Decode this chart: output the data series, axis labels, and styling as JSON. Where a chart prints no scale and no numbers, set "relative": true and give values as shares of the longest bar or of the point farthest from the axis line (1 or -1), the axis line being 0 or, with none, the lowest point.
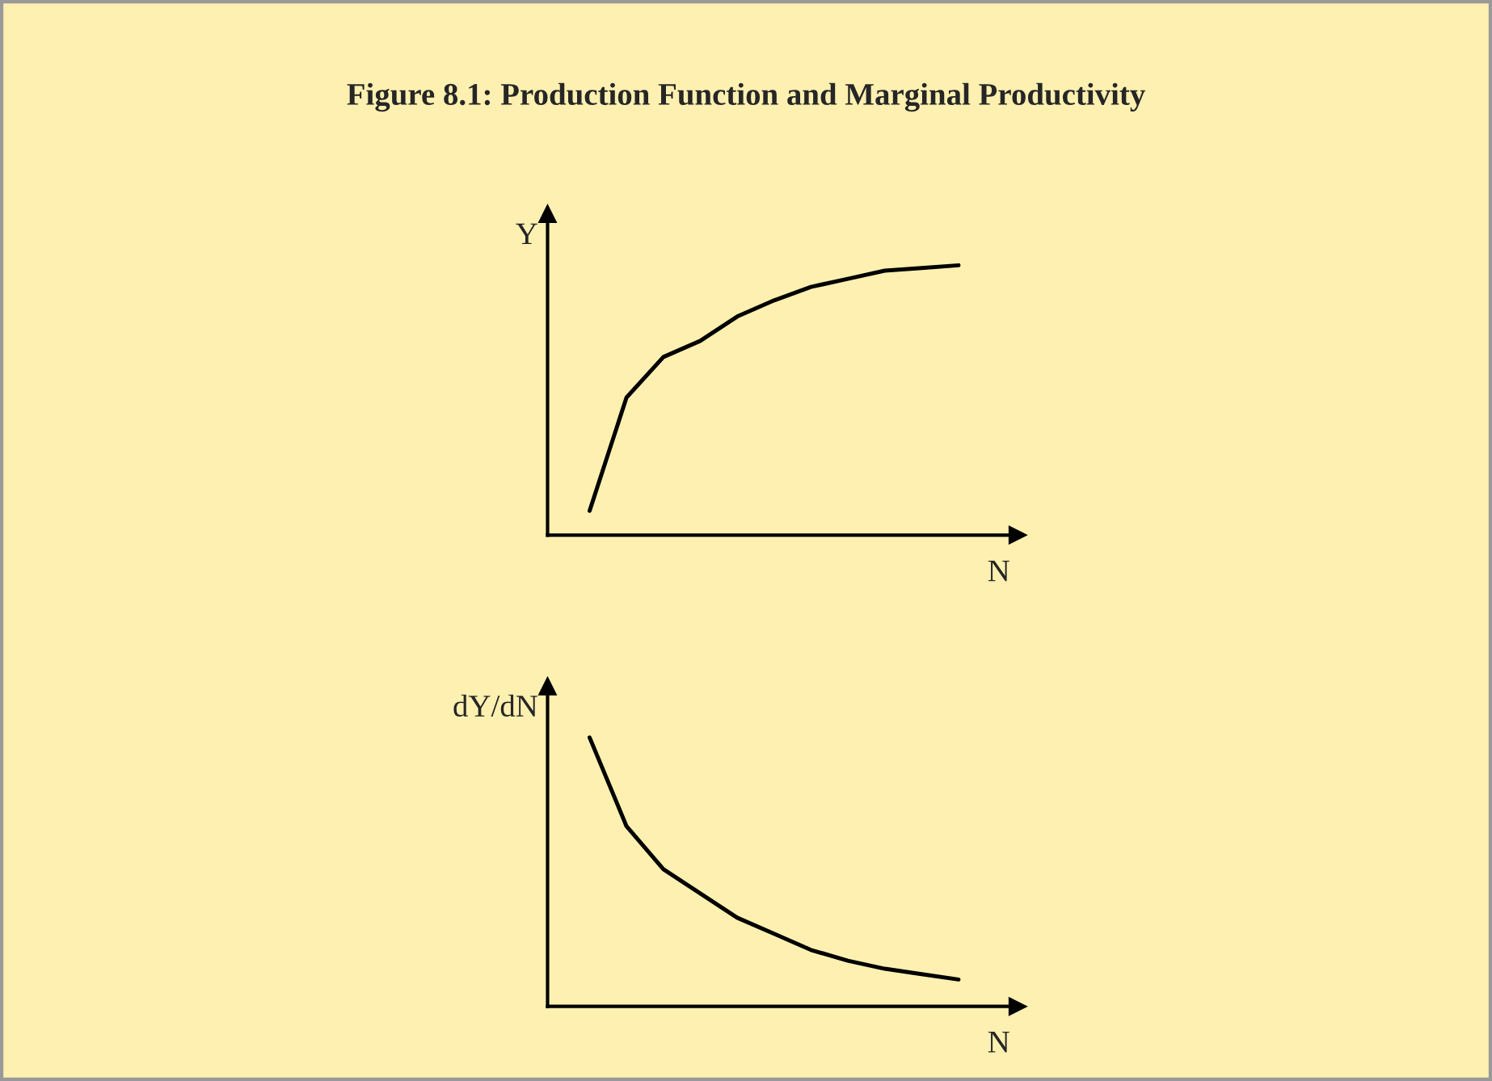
{
  "chart_data": [
    {
      "type": "line",
      "title": "Figure 8.1: Production Function and Marginal Productivity",
      "ylabel": "Y",
      "xlabel": "N",
      "relative": true,
      "categories": [
        null,
        null,
        null,
        null,
        null,
        null,
        null,
        null,
        null,
        null,
        null
      ],
      "series": [
        {
          "color": "#000000",
          "values": [
            0.09,
            0.51,
            0.66,
            0.72,
            0.81,
            0.87,
            0.92,
            0.95,
            0.98,
            0.99,
            1
          ]
        }
      ]
    },
    {
      "type": "line",
      "ylabel": "dY/dN",
      "xlabel": "N",
      "relative": true,
      "categories": [
        null,
        null,
        null,
        null,
        null,
        null,
        null,
        null,
        null,
        null,
        null
      ],
      "series": [
        {
          "color": "#000000",
          "values": [
            1,
            0.67,
            0.51,
            0.42,
            0.33,
            0.27,
            0.21,
            0.17,
            0.14,
            0.12,
            0.1
          ]
        }
      ]
    }
  ]
}
